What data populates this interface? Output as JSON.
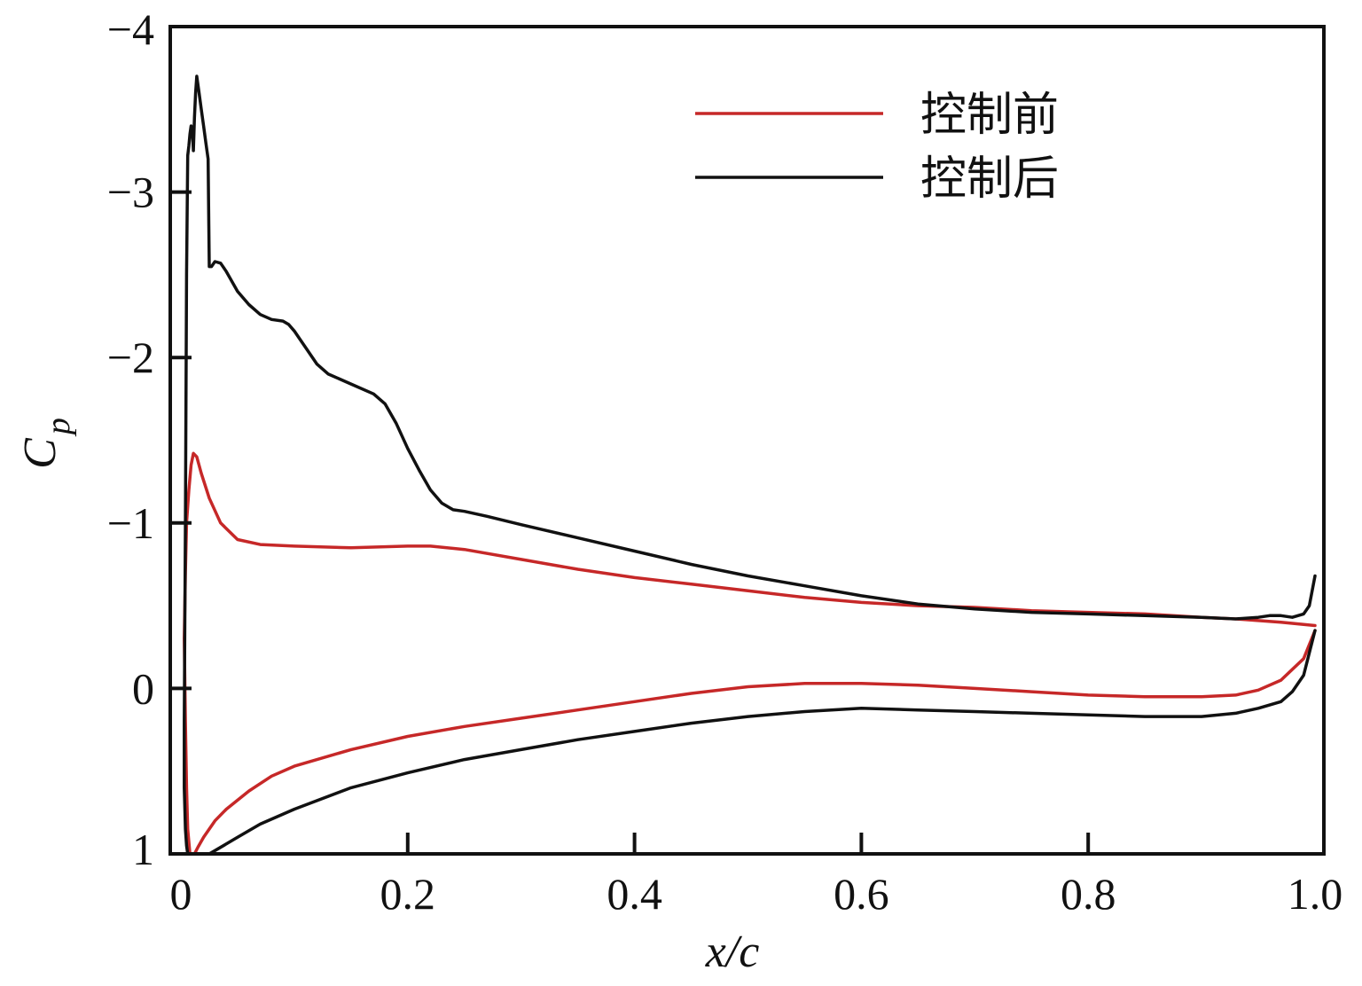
{
  "chart_data": {
    "type": "line",
    "xlabel": "x/c",
    "ylabel_main": "C",
    "ylabel_sub": "p",
    "xlim": [
      0,
      1.0
    ],
    "ylim": [
      1,
      -4
    ],
    "y_inverted": true,
    "grid": false,
    "legend_position": "top-right",
    "xticks": [
      {
        "value": 0,
        "label": "0"
      },
      {
        "value": 0.2,
        "label": "0.2"
      },
      {
        "value": 0.4,
        "label": "0.4"
      },
      {
        "value": 0.6,
        "label": "0.6"
      },
      {
        "value": 0.8,
        "label": "0.8"
      },
      {
        "value": 1.0,
        "label": "1.0"
      }
    ],
    "yticks": [
      {
        "value": -4,
        "label": "−4"
      },
      {
        "value": -3,
        "label": "−3"
      },
      {
        "value": -2,
        "label": "−2"
      },
      {
        "value": -1,
        "label": "−1"
      },
      {
        "value": 0,
        "label": "0"
      },
      {
        "value": 1,
        "label": "1"
      }
    ],
    "series": [
      {
        "name": "控制前",
        "color": "#c62828",
        "x": [
          1.0,
          0.97,
          0.93,
          0.9,
          0.85,
          0.8,
          0.75,
          0.7,
          0.65,
          0.6,
          0.55,
          0.5,
          0.45,
          0.4,
          0.35,
          0.3,
          0.25,
          0.22,
          0.2,
          0.15,
          0.1,
          0.07,
          0.05,
          0.035,
          0.025,
          0.018,
          0.014,
          0.011,
          0.009,
          0.007,
          0.005,
          0.004,
          0.003,
          0.004,
          0.005,
          0.006,
          0.008,
          0.01,
          0.012,
          0.015,
          0.02,
          0.03,
          0.04,
          0.06,
          0.08,
          0.1,
          0.15,
          0.2,
          0.25,
          0.3,
          0.35,
          0.4,
          0.45,
          0.5,
          0.55,
          0.6,
          0.65,
          0.7,
          0.75,
          0.8,
          0.85,
          0.9,
          0.93,
          0.95,
          0.97,
          0.99,
          1.0
        ],
        "y": [
          -0.38,
          -0.4,
          -0.42,
          -0.43,
          -0.45,
          -0.46,
          -0.47,
          -0.49,
          -0.5,
          -0.52,
          -0.55,
          -0.59,
          -0.63,
          -0.67,
          -0.72,
          -0.78,
          -0.84,
          -0.86,
          -0.86,
          -0.85,
          -0.86,
          -0.87,
          -0.9,
          -1.0,
          -1.15,
          -1.3,
          -1.4,
          -1.42,
          -1.35,
          -1.2,
          -1.0,
          -0.7,
          -0.3,
          0.2,
          0.6,
          0.85,
          1.0,
          1.05,
          1.0,
          0.96,
          0.9,
          0.8,
          0.73,
          0.62,
          0.53,
          0.47,
          0.37,
          0.29,
          0.23,
          0.18,
          0.13,
          0.08,
          0.03,
          -0.01,
          -0.03,
          -0.03,
          -0.02,
          0.0,
          0.02,
          0.04,
          0.05,
          0.05,
          0.04,
          0.01,
          -0.05,
          -0.18,
          -0.35
        ]
      },
      {
        "name": "控制后",
        "color": "#111111",
        "x": [
          1.0,
          0.995,
          0.99,
          0.98,
          0.97,
          0.96,
          0.95,
          0.93,
          0.9,
          0.85,
          0.8,
          0.75,
          0.7,
          0.65,
          0.6,
          0.55,
          0.5,
          0.45,
          0.4,
          0.35,
          0.3,
          0.27,
          0.25,
          0.24,
          0.23,
          0.22,
          0.21,
          0.2,
          0.19,
          0.18,
          0.17,
          0.15,
          0.13,
          0.12,
          0.11,
          0.1,
          0.095,
          0.09,
          0.08,
          0.07,
          0.06,
          0.05,
          0.04,
          0.035,
          0.03,
          0.027,
          0.025,
          0.024,
          0.022,
          0.02,
          0.018,
          0.016,
          0.014,
          0.013,
          0.012,
          0.011,
          0.01,
          0.009,
          0.008,
          0.007,
          0.006,
          0.005,
          0.004,
          0.003,
          0.003,
          0.004,
          0.005,
          0.006,
          0.007,
          0.008,
          0.01,
          0.012,
          0.015,
          0.02,
          0.025,
          0.03,
          0.04,
          0.05,
          0.07,
          0.1,
          0.15,
          0.2,
          0.25,
          0.3,
          0.35,
          0.4,
          0.45,
          0.5,
          0.55,
          0.6,
          0.65,
          0.7,
          0.75,
          0.8,
          0.85,
          0.9,
          0.93,
          0.95,
          0.97,
          0.98,
          0.99,
          1.0
        ],
        "y": [
          -0.68,
          -0.5,
          -0.45,
          -0.43,
          -0.44,
          -0.44,
          -0.43,
          -0.42,
          -0.43,
          -0.44,
          -0.45,
          -0.46,
          -0.48,
          -0.51,
          -0.56,
          -0.62,
          -0.68,
          -0.75,
          -0.83,
          -0.91,
          -0.99,
          -1.04,
          -1.07,
          -1.08,
          -1.12,
          -1.2,
          -1.32,
          -1.45,
          -1.6,
          -1.72,
          -1.78,
          -1.84,
          -1.9,
          -1.96,
          -2.06,
          -2.16,
          -2.2,
          -2.22,
          -2.23,
          -2.26,
          -2.32,
          -2.4,
          -2.52,
          -2.57,
          -2.58,
          -2.55,
          -2.55,
          -3.2,
          -3.3,
          -3.4,
          -3.5,
          -3.6,
          -3.7,
          -3.6,
          -3.45,
          -3.25,
          -3.38,
          -3.4,
          -3.35,
          -3.28,
          -3.22,
          -2.5,
          -1.0,
          0.2,
          0.6,
          0.85,
          0.95,
          1.0,
          1.02,
          1.03,
          1.03,
          1.03,
          1.02,
          1.01,
          1.0,
          0.98,
          0.94,
          0.9,
          0.82,
          0.73,
          0.6,
          0.51,
          0.43,
          0.37,
          0.31,
          0.26,
          0.21,
          0.17,
          0.14,
          0.12,
          0.13,
          0.14,
          0.15,
          0.16,
          0.17,
          0.17,
          0.15,
          0.12,
          0.08,
          0.02,
          -0.08,
          -0.35
        ]
      }
    ]
  }
}
